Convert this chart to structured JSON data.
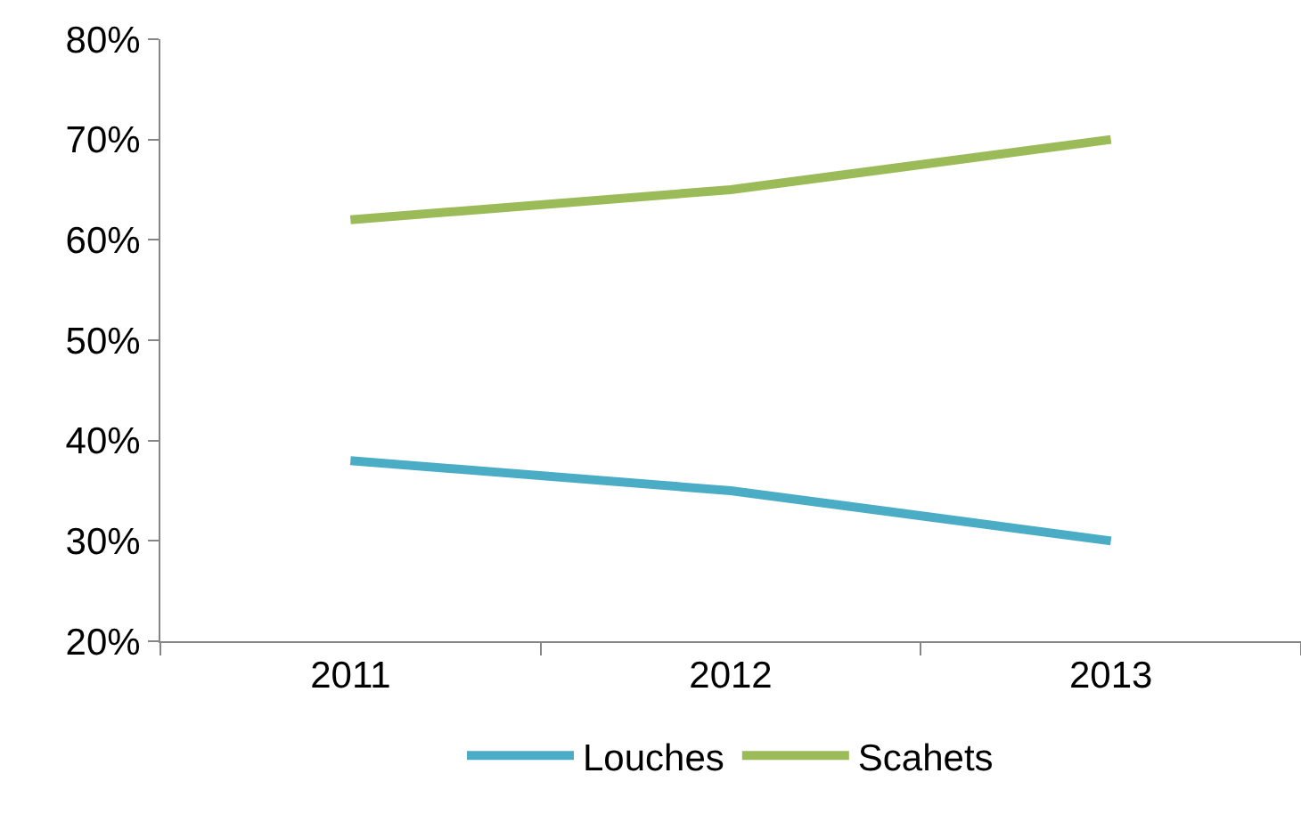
{
  "chart_data": {
    "type": "line",
    "categories": [
      "2011",
      "2012",
      "2013"
    ],
    "series": [
      {
        "name": "Louches",
        "color": "#4bacc6",
        "values": [
          38,
          35,
          30
        ]
      },
      {
        "name": "Scahets",
        "color": "#9bbb59",
        "values": [
          62,
          65,
          70
        ]
      }
    ],
    "ylim": [
      20,
      80
    ],
    "yticks": [
      {
        "value": 20,
        "label": "20%"
      },
      {
        "value": 30,
        "label": "30%"
      },
      {
        "value": 40,
        "label": "40%"
      },
      {
        "value": 50,
        "label": "50%"
      },
      {
        "value": 60,
        "label": "60%"
      },
      {
        "value": 70,
        "label": "70%"
      },
      {
        "value": 80,
        "label": "80%"
      }
    ],
    "grid": false,
    "legend": "bottom",
    "marker": "none",
    "line_style": "solid"
  }
}
